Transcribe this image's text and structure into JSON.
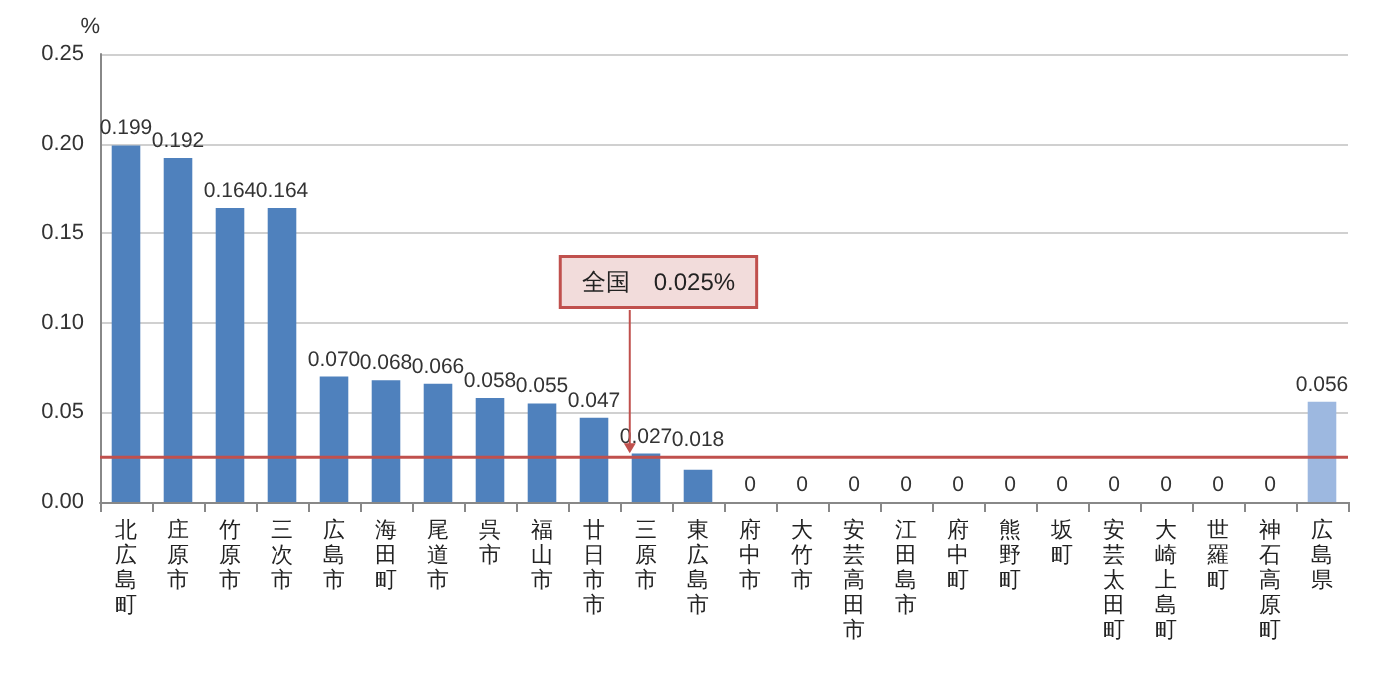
{
  "chart_data": {
    "type": "bar",
    "ylabel": "%",
    "categories": [
      "北広島町",
      "庄原市",
      "竹原市",
      "三次市",
      "広島市",
      "海田町",
      "尾道市",
      "呉市",
      "福山市",
      "廿日市市",
      "三原市",
      "東広島市",
      "府中市",
      "大竹市",
      "安芸高田市",
      "江田島市",
      "府中町",
      "熊野町",
      "坂町",
      "安芸太田町",
      "大崎上島町",
      "世羅町",
      "神石高原町",
      "広島県"
    ],
    "values": [
      0.199,
      0.192,
      0.164,
      0.164,
      0.07,
      0.068,
      0.066,
      0.058,
      0.055,
      0.047,
      0.027,
      0.018,
      0,
      0,
      0,
      0,
      0,
      0,
      0,
      0,
      0,
      0,
      0,
      0.056
    ],
    "value_labels": [
      "0.199",
      "0.192",
      "0.164",
      "0.164",
      "0.070",
      "0.068",
      "0.066",
      "0.058",
      "0.055",
      "0.047",
      "0.027",
      "0.018",
      "0",
      "0",
      "0",
      "0",
      "0",
      "0",
      "0",
      "0",
      "0",
      "0",
      "0",
      "0.056"
    ],
    "colors": [
      "#4f81bd",
      "#4f81bd",
      "#4f81bd",
      "#4f81bd",
      "#4f81bd",
      "#4f81bd",
      "#4f81bd",
      "#4f81bd",
      "#4f81bd",
      "#4f81bd",
      "#4f81bd",
      "#4f81bd",
      "#4f81bd",
      "#4f81bd",
      "#4f81bd",
      "#4f81bd",
      "#4f81bd",
      "#4f81bd",
      "#4f81bd",
      "#4f81bd",
      "#4f81bd",
      "#4f81bd",
      "#4f81bd",
      "#9db8e0"
    ],
    "ylim": [
      0,
      0.25
    ],
    "yticks": [
      {
        "value": 0,
        "label": "0.00"
      },
      {
        "value": 0.05,
        "label": "0.05"
      },
      {
        "value": 0.1,
        "label": "0.10"
      },
      {
        "value": 0.15,
        "label": "0.15"
      },
      {
        "value": 0.2,
        "label": "0.20"
      },
      {
        "value": 0.25,
        "label": "0.25"
      }
    ],
    "grid": "y",
    "ref_lines": [
      {
        "axis": "y",
        "value": 0.025,
        "label": "全国　0.025%",
        "color": "#c0504d"
      }
    ]
  }
}
